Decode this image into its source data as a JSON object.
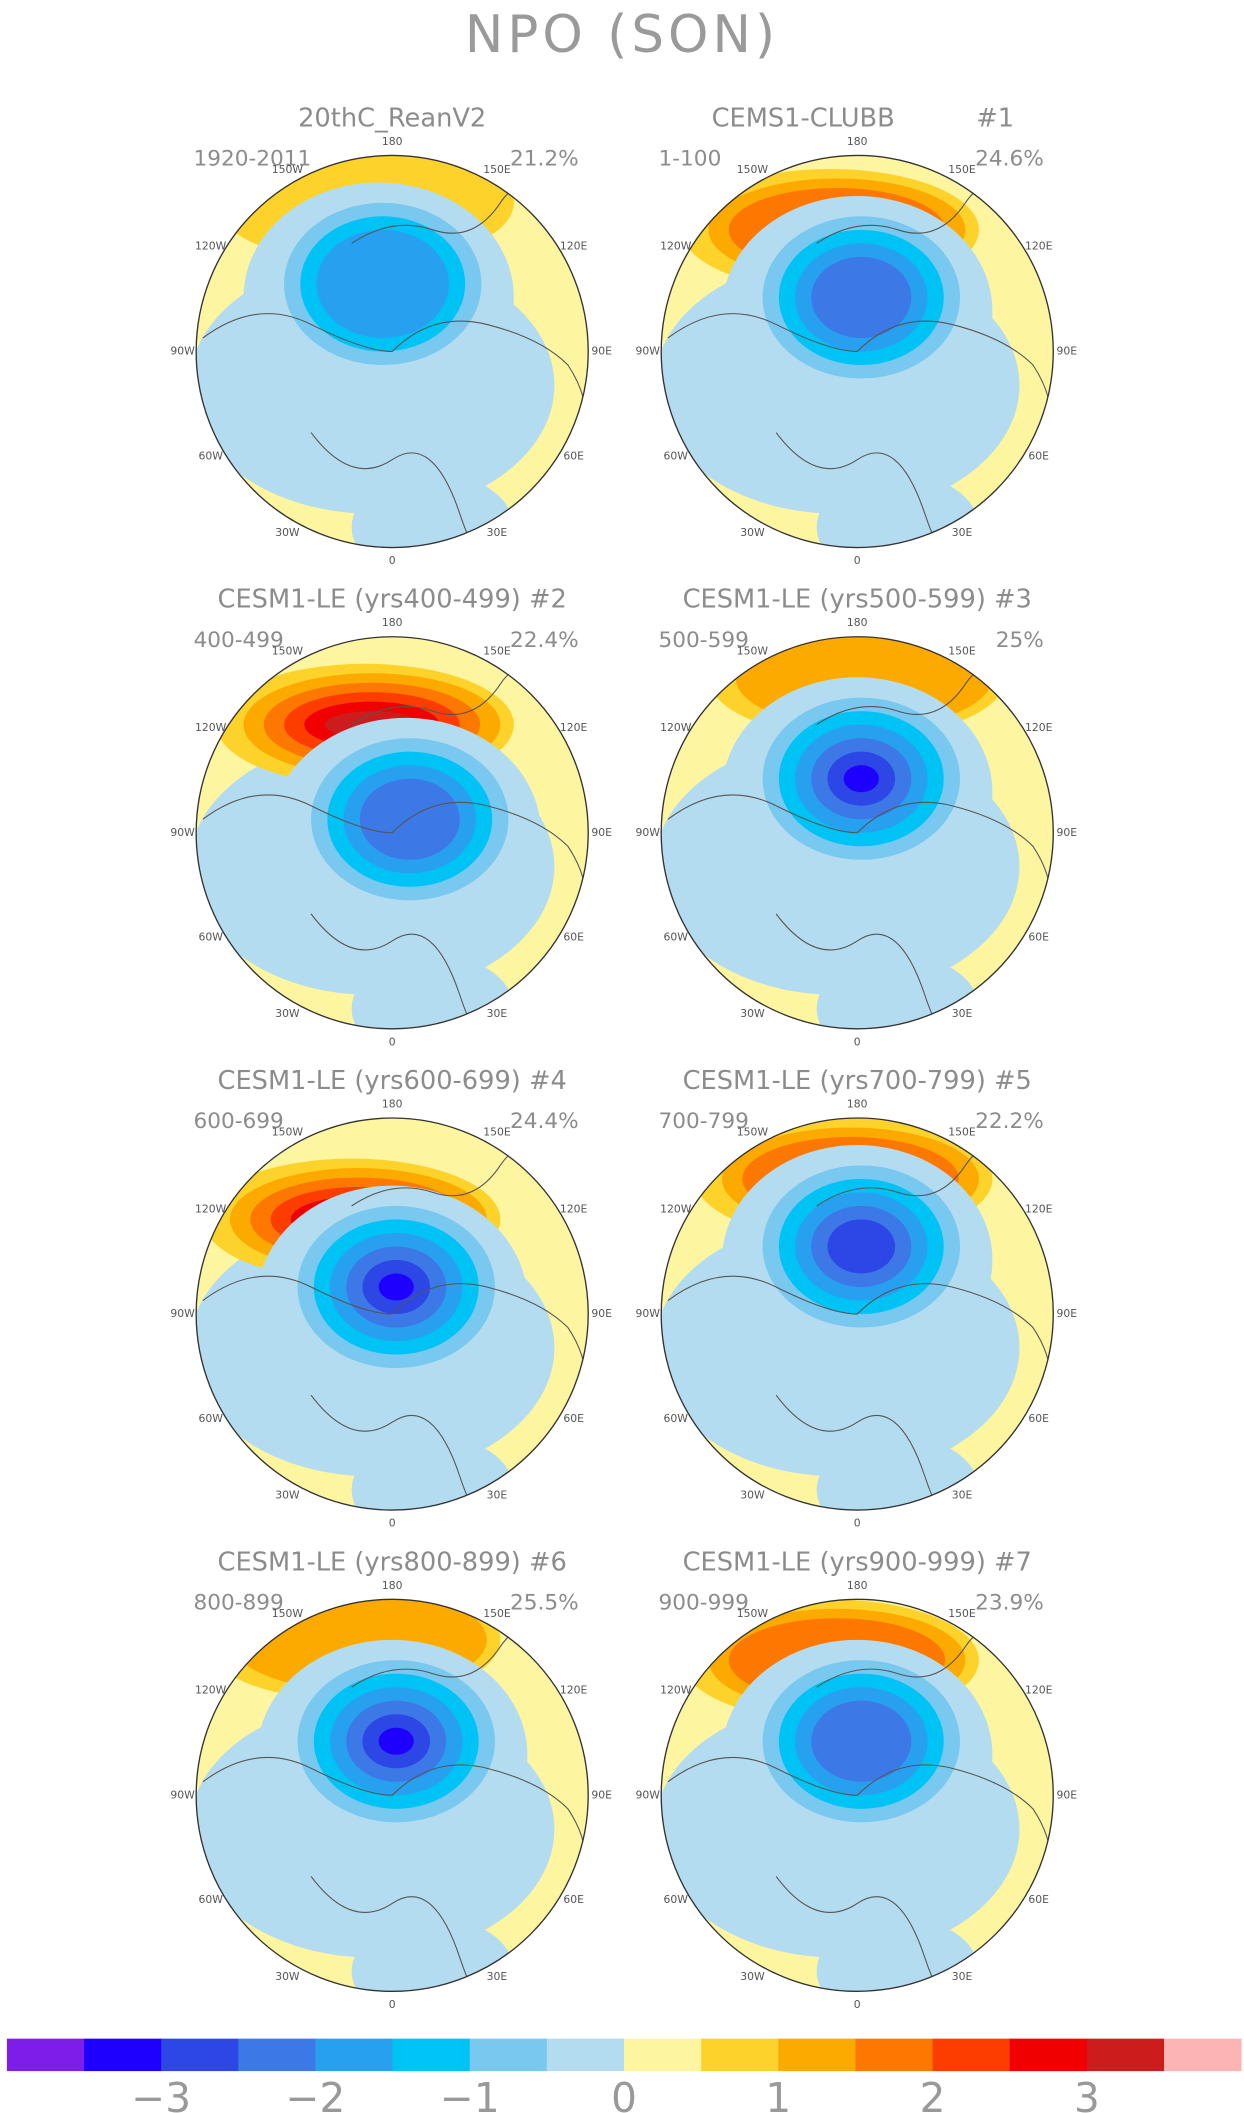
{
  "title": "NPO (SON)",
  "panels": [
    {
      "title": "20thC_ReanV2",
      "period": "1920-2011",
      "variance": "21.2%"
    },
    {
      "title": "CEMS1-CLUBB",
      "number": "#1",
      "period": "1-100",
      "variance": "24.6%"
    },
    {
      "title": "CESM1-LE (yrs400-499) #2",
      "period": "400-499",
      "variance": "22.4%"
    },
    {
      "title": "CESM1-LE (yrs500-599) #3",
      "period": "500-599",
      "variance": "25%"
    },
    {
      "title": "CESM1-LE (yrs600-699) #4",
      "period": "600-699",
      "variance": "24.4%"
    },
    {
      "title": "CESM1-LE (yrs700-799) #5",
      "period": "700-799",
      "variance": "22.2%"
    },
    {
      "title": "CESM1-LE (yrs800-899) #6",
      "period": "800-899",
      "variance": "25.5%"
    },
    {
      "title": "CESM1-LE (yrs900-999) #7",
      "period": "900-999",
      "variance": "23.9%"
    }
  ],
  "lon_labels": [
    "180",
    "150E",
    "120E",
    "90E",
    "60E",
    "30E",
    "0",
    "30W",
    "60W",
    "90W",
    "120W",
    "150W"
  ],
  "colorbar": {
    "clim": [
      -4,
      4
    ],
    "colors": [
      "#7d1ee8",
      "#1e00ff",
      "#2d46e6",
      "#3c78e6",
      "#28a0f0",
      "#00c3f5",
      "#78c8f0",
      "#b4dcf0",
      "#fdf5a0",
      "#fdd22a",
      "#fdaa00",
      "#fd7800",
      "#fd3c00",
      "#f00000",
      "#cd1c1c",
      "#fdb4b4"
    ],
    "ticks": [
      {
        "value": -3,
        "label": "−3"
      },
      {
        "value": -2,
        "label": "−2"
      },
      {
        "value": -1,
        "label": "−1"
      },
      0,
      1,
      2,
      3
    ]
  }
}
